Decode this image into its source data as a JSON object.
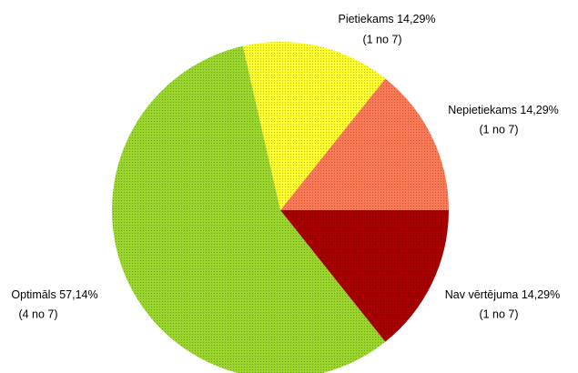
{
  "chart_data": {
    "type": "pie",
    "categories": [
      "Nepietiekams",
      "Pietiekams",
      "Optimāls",
      "Nav vērtējuma"
    ],
    "values": [
      14.29,
      14.29,
      57.14,
      14.29
    ],
    "value_labels": [
      "14,29%",
      "14,29%",
      "57,14%",
      "14,29%"
    ],
    "count_labels": [
      "(1 no 7)",
      "(1 no 7)",
      "(4 no 7)",
      "(1 no 7)"
    ],
    "colors": [
      "#fb7a55",
      "#ffff2e",
      "#9ad62c",
      "#a80000"
    ]
  }
}
